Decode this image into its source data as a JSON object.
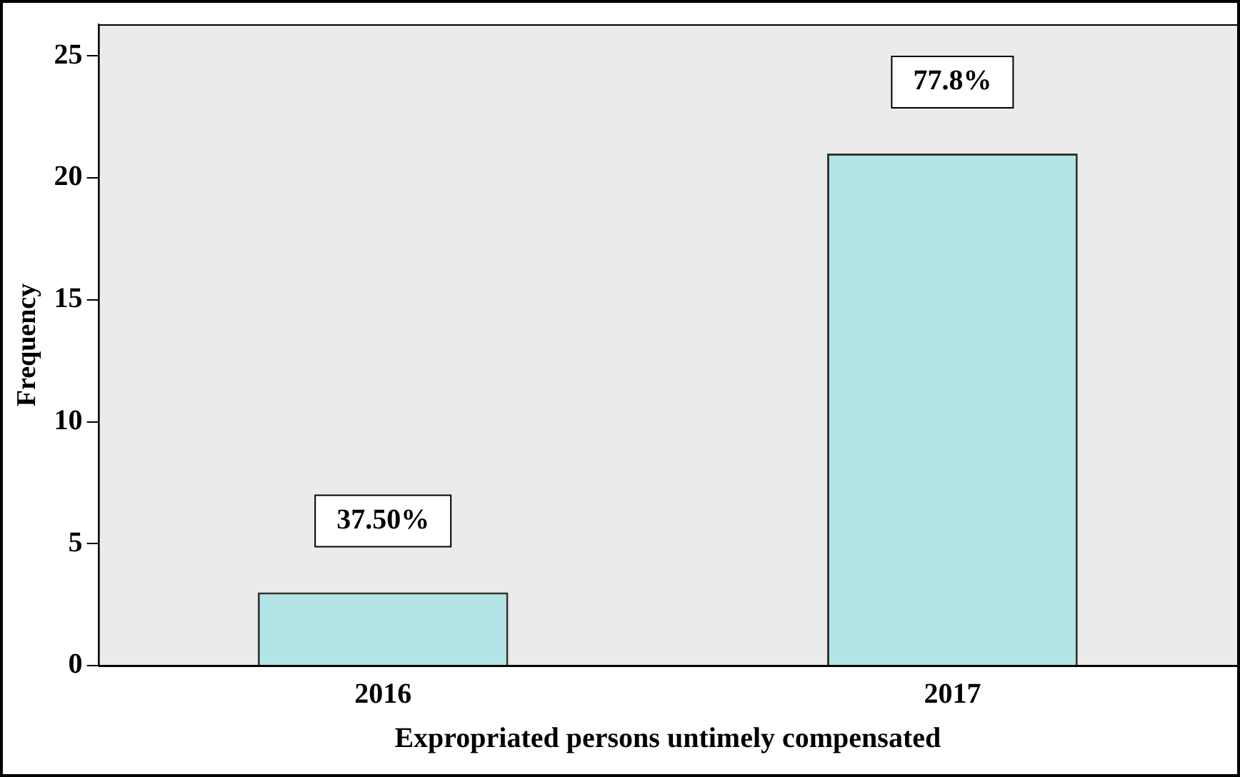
{
  "chart_data": {
    "type": "bar",
    "xlabel": "Expropriated persons untimely compensated",
    "ylabel": "Frequency",
    "categories": [
      "2016",
      "2017"
    ],
    "values": [
      3,
      21
    ],
    "color": "#b3e5e6",
    "annotations": [
      {
        "text": "37.50%",
        "x": "2016",
        "y": 3
      },
      {
        "text": "77.8%",
        "x": "2017",
        "y": 21
      }
    ],
    "ylim": [
      0,
      26.3
    ],
    "yticks": [
      0,
      5,
      10,
      15,
      20,
      25
    ],
    "grid": false
  }
}
